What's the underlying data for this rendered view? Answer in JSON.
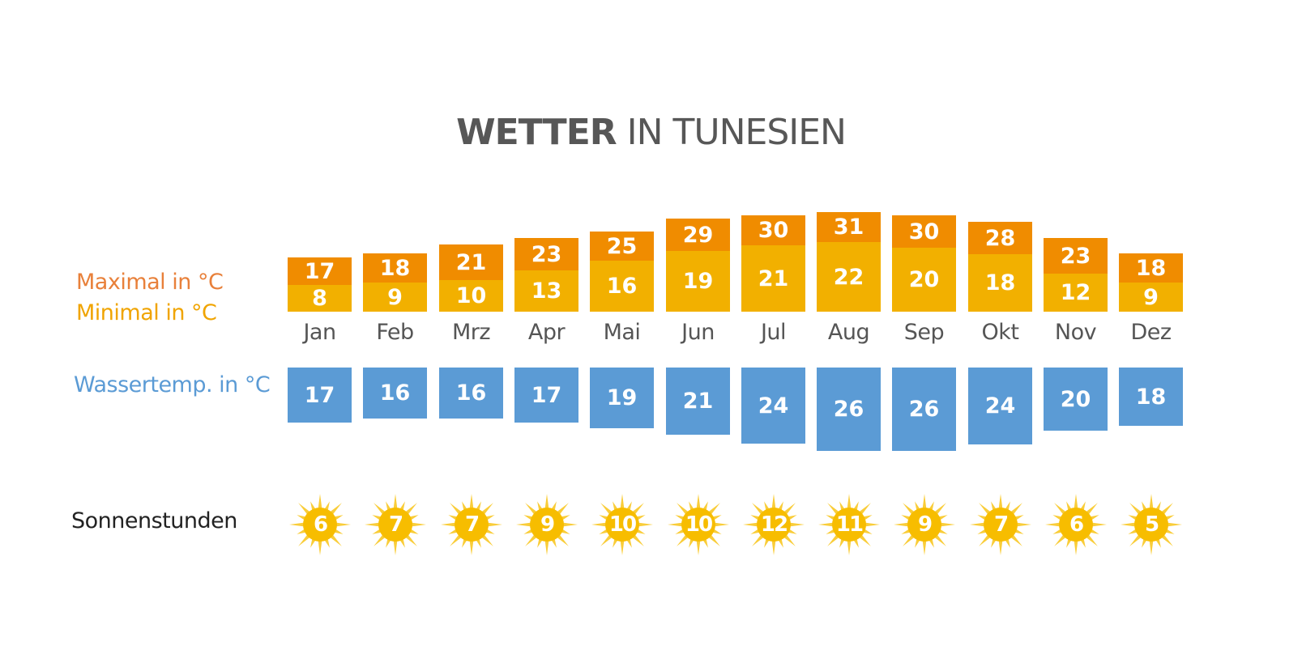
{
  "title": {
    "bold": "WETTER",
    "light": "IN TUNESIEN"
  },
  "legend": {
    "max": {
      "label": "Maximal in °C",
      "color": "#e8803a"
    },
    "min": {
      "label": "Minimal in °C",
      "color": "#f0a400"
    },
    "water": {
      "label": "Wassertemp. in °C",
      "color": "#5b9bd5"
    },
    "sun": {
      "label": "Sonnenstunden",
      "color": "#222222"
    }
  },
  "colors": {
    "max_bar": "#f08c00",
    "min_bar": "#f2b000",
    "water_bar": "#5b9bd5",
    "sun": "#f7bd00",
    "sun_rays": "#f9cd3a"
  },
  "months": [
    {
      "label": "Jan",
      "max": "17",
      "min": "8",
      "water": "17",
      "sun": "6"
    },
    {
      "label": "Feb",
      "max": "18",
      "min": "9",
      "water": "16",
      "sun": "7"
    },
    {
      "label": "Mrz",
      "max": "21",
      "min": "10",
      "water": "16",
      "sun": "7"
    },
    {
      "label": "Apr",
      "max": "23",
      "min": "13",
      "water": "17",
      "sun": "9"
    },
    {
      "label": "Mai",
      "max": "25",
      "min": "16",
      "water": "19",
      "sun": "10"
    },
    {
      "label": "Jun",
      "max": "29",
      "min": "19",
      "water": "21",
      "sun": "10"
    },
    {
      "label": "Jul",
      "max": "30",
      "min": "21",
      "water": "24",
      "sun": "12"
    },
    {
      "label": "Aug",
      "max": "31",
      "min": "22",
      "water": "26",
      "sun": "11"
    },
    {
      "label": "Sep",
      "max": "30",
      "min": "20",
      "water": "26",
      "sun": "9"
    },
    {
      "label": "Okt",
      "max": "28",
      "min": "18",
      "water": "24",
      "sun": "7"
    },
    {
      "label": "Nov",
      "max": "23",
      "min": "12",
      "water": "20",
      "sun": "6"
    },
    {
      "label": "Dez",
      "max": "18",
      "min": "9",
      "water": "18",
      "sun": "5"
    }
  ],
  "chart_data": {
    "type": "table",
    "title": "WETTER IN TUNESIEN",
    "categories": [
      "Jan",
      "Feb",
      "Mrz",
      "Apr",
      "Mai",
      "Jun",
      "Jul",
      "Aug",
      "Sep",
      "Okt",
      "Nov",
      "Dez"
    ],
    "series": [
      {
        "name": "Maximal in °C",
        "values": [
          17,
          18,
          21,
          23,
          25,
          29,
          30,
          31,
          30,
          28,
          23,
          18
        ]
      },
      {
        "name": "Minimal in °C",
        "values": [
          8,
          9,
          10,
          13,
          16,
          19,
          21,
          22,
          20,
          18,
          12,
          9
        ]
      },
      {
        "name": "Wassertemp. in °C",
        "values": [
          17,
          16,
          16,
          17,
          19,
          21,
          24,
          26,
          26,
          24,
          20,
          18
        ]
      },
      {
        "name": "Sonnenstunden",
        "values": [
          6,
          7,
          7,
          9,
          10,
          10,
          12,
          11,
          9,
          7,
          6,
          5
        ]
      }
    ],
    "xlabel": "",
    "ylabel": "",
    "legend_position": "left",
    "grid": false
  }
}
